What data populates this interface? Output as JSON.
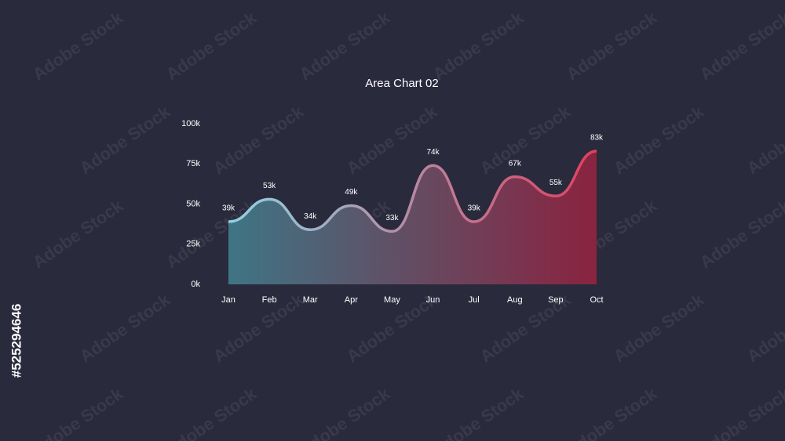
{
  "chart_data": {
    "type": "area",
    "title": "Area Chart 02",
    "categories": [
      "Jan",
      "Feb",
      "Mar",
      "Apr",
      "May",
      "Jun",
      "Jul",
      "Aug",
      "Sep",
      "Oct"
    ],
    "values": [
      39000,
      53000,
      34000,
      49000,
      33000,
      74000,
      39000,
      67000,
      55000,
      83000
    ],
    "value_labels": [
      "39k",
      "53k",
      "34k",
      "49k",
      "33k",
      "74k",
      "39k",
      "67k",
      "55k",
      "83k"
    ],
    "ylim": [
      0,
      100000
    ],
    "yticks": [
      {
        "value": 0,
        "label": "0k"
      },
      {
        "value": 25000,
        "label": "25k"
      },
      {
        "value": 50000,
        "label": "50k"
      },
      {
        "value": 75000,
        "label": "75k"
      },
      {
        "value": 100000,
        "label": "100k"
      }
    ],
    "grid": false,
    "line_colors": [
      "#8fd3e3",
      "#e0405f"
    ],
    "fill_colors": [
      "#3e7585",
      "#8a2340"
    ]
  },
  "watermark": {
    "text": "Adobe Stock",
    "id": "#525294646"
  }
}
